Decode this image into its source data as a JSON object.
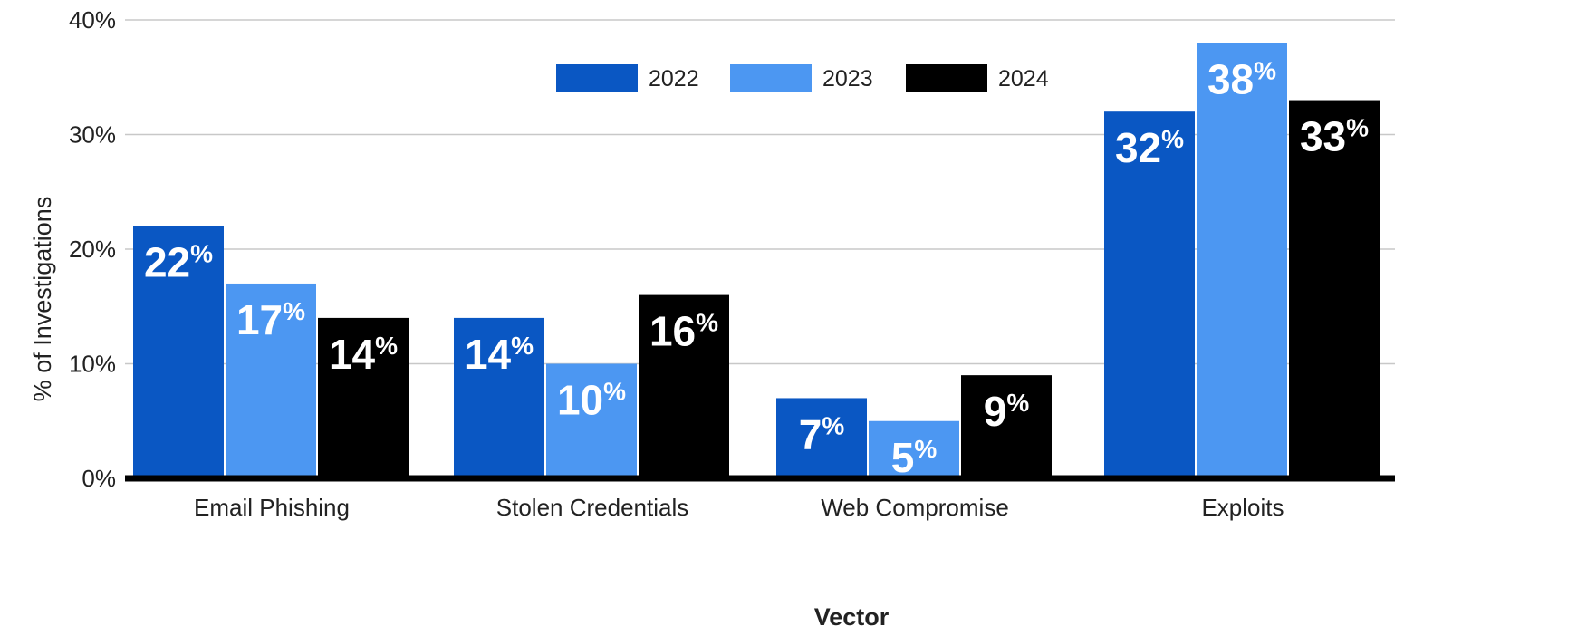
{
  "chart_data": {
    "type": "bar",
    "title": "",
    "xlabel": "Vector",
    "ylabel": "% of Investigations",
    "categories": [
      "Email Phishing",
      "Stolen Credentials",
      "Web Compromise",
      "Exploits"
    ],
    "series": [
      {
        "name": "2022",
        "color": "#0a57c3",
        "values": [
          22,
          14,
          7,
          32
        ]
      },
      {
        "name": "2023",
        "color": "#4c97f2",
        "values": [
          17,
          10,
          5,
          38
        ]
      },
      {
        "name": "2024",
        "color": "#000000",
        "values": [
          14,
          16,
          9,
          33
        ]
      }
    ],
    "data_labels": [
      [
        "22",
        "14",
        "7",
        "32"
      ],
      [
        "17",
        "10",
        "5",
        "38"
      ],
      [
        "14",
        "16",
        "9",
        "33"
      ]
    ],
    "value_suffix": "%",
    "ylim": [
      0,
      40
    ],
    "yticks": [
      {
        "value": 0,
        "label": "0%"
      },
      {
        "value": 10,
        "label": "10%"
      },
      {
        "value": 20,
        "label": "20%"
      },
      {
        "value": 30,
        "label": "30%"
      },
      {
        "value": 40,
        "label": "40%"
      }
    ],
    "grid": true,
    "legend_position": "top-center"
  }
}
